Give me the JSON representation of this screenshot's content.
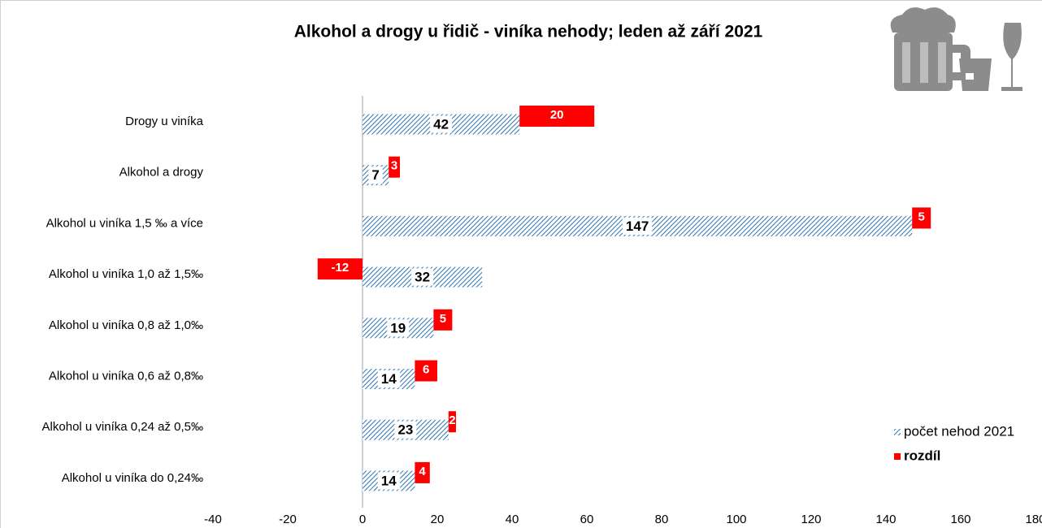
{
  "chart_data": {
    "type": "bar",
    "orientation": "horizontal",
    "stacked": true,
    "title": "Alkohol a drogy u řidič - viníka nehody; leden až září  2021",
    "categories": [
      "Drogy u viníka",
      "Alkohol a drogy",
      "Alkohol u viníka 1,5 ‰ a více",
      "Alkohol u viníka 1,0 až 1,5‰",
      "Alkohol u viníka  0,8 až 1,0‰",
      "Alkohol u viníka  0,6 až 0,8‰",
      "Alkohol u viníka  0,24 až 0,5‰",
      "Alkohol u viníka do 0,24‰"
    ],
    "series": [
      {
        "name": "počet nehod 2021",
        "color": "#2e75b6",
        "pattern": "hatch",
        "values": [
          42,
          7,
          147,
          32,
          19,
          14,
          23,
          14
        ]
      },
      {
        "name": "rozdíl",
        "color": "#ff0000",
        "values": [
          20,
          3,
          5,
          -12,
          5,
          6,
          2,
          4
        ]
      }
    ],
    "xlim": [
      -40,
      180
    ],
    "xticks": [
      -40,
      -20,
      0,
      20,
      40,
      60,
      80,
      100,
      120,
      140,
      160,
      180
    ],
    "legend": "right"
  }
}
